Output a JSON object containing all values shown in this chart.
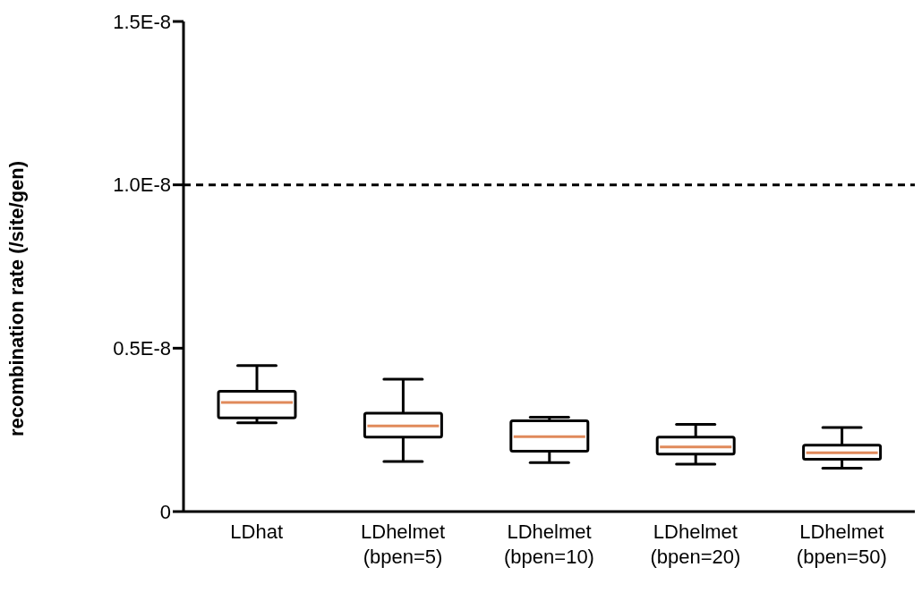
{
  "chart_data": {
    "type": "box",
    "ylabel": "recombination rate (/site/gen)",
    "categories": [
      "LDhat",
      "LDhelmet (bpen=5)",
      "LDhelmet (bpen=10)",
      "LDhelmet (bpen=20)",
      "LDhelmet (bpen=50)"
    ],
    "series": [
      {
        "color": "#000000",
        "boxes": [
          {
            "low": 2.72e-09,
            "q1": 2.87e-09,
            "median": 3.34e-09,
            "q3": 3.68e-09,
            "high": 4.47e-09
          },
          {
            "low": 1.53e-09,
            "q1": 2.28e-09,
            "median": 2.62e-09,
            "q3": 3.01e-09,
            "high": 4.05e-09
          },
          {
            "low": 1.5e-09,
            "q1": 1.85e-09,
            "median": 2.29e-09,
            "q3": 2.78e-09,
            "high": 2.89e-09
          },
          {
            "low": 1.45e-09,
            "q1": 1.76e-09,
            "median": 1.98e-09,
            "q3": 2.28e-09,
            "high": 2.67e-09
          },
          {
            "low": 1.33e-09,
            "q1": 1.6e-09,
            "median": 1.8e-09,
            "q3": 2.03e-09,
            "high": 2.57e-09
          }
        ]
      }
    ],
    "ylim": [
      0,
      1.5e-08
    ],
    "yticks": [
      {
        "value": 0,
        "label": "0"
      },
      {
        "value": 5e-09,
        "label": "0.5E-8"
      },
      {
        "value": 1e-08,
        "label": "1.0E-8"
      },
      {
        "value": 1.5e-08,
        "label": "1.5E-8"
      }
    ],
    "ref_lines": [
      {
        "axis": "y",
        "value": 1e-08,
        "line_style": "dashed",
        "color": "#000000"
      }
    ],
    "grid": false,
    "legend": false
  }
}
